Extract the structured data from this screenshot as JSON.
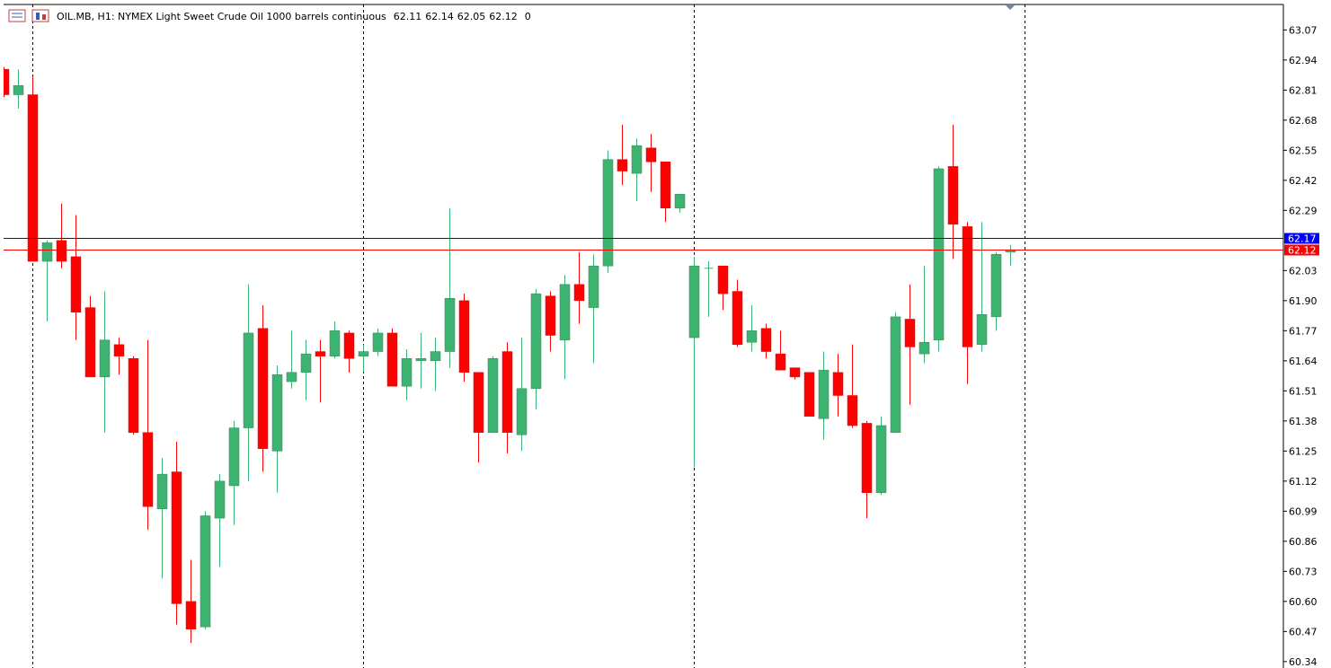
{
  "chart_data": {
    "type": "candlestick",
    "title": "OIL.MB, H1:  NYMEX Light Sweet Crude Oil 1000 barrels continuous",
    "header_number": 0,
    "categories": [
      null,
      null,
      null,
      null,
      null,
      null,
      null,
      null,
      null,
      null,
      null,
      null,
      null,
      null,
      null,
      null,
      null,
      null,
      null,
      null,
      null,
      null,
      null,
      null,
      null,
      null,
      null,
      null,
      null,
      null,
      null,
      null,
      null,
      null,
      null,
      null,
      null,
      null,
      null,
      null,
      null,
      null,
      null,
      null,
      null,
      null,
      null,
      null,
      null,
      null,
      null,
      null,
      null,
      null,
      null,
      null,
      null,
      null,
      null,
      null,
      null,
      null,
      null,
      null,
      null,
      null,
      null,
      null,
      null,
      null,
      null
    ],
    "open": [
      62.9,
      62.79,
      62.79,
      62.07,
      62.16,
      62.09,
      61.87,
      61.57,
      61.71,
      61.65,
      61.33,
      61.0,
      61.16,
      60.6,
      60.49,
      60.96,
      61.1,
      61.35,
      61.78,
      61.25,
      61.55,
      61.59,
      61.68,
      61.66,
      61.76,
      61.66,
      61.68,
      61.76,
      61.53,
      61.64,
      61.64,
      61.68,
      61.9,
      61.59,
      61.33,
      61.68,
      61.32,
      61.52,
      61.92,
      61.73,
      61.97,
      61.87,
      62.05,
      62.51,
      62.45,
      62.56,
      62.5,
      62.3,
      61.74,
      62.04,
      62.05,
      61.94,
      61.72,
      61.78,
      61.67,
      61.61,
      61.59,
      61.39,
      61.59,
      61.49,
      61.37,
      61.07,
      61.33,
      61.82,
      61.67,
      61.73,
      62.48,
      62.22,
      61.71,
      61.83,
      62.11
    ],
    "high": [
      62.91,
      62.9,
      62.87,
      62.16,
      62.32,
      62.27,
      61.92,
      61.94,
      61.74,
      61.66,
      61.73,
      61.22,
      61.29,
      60.78,
      60.99,
      61.15,
      61.38,
      61.97,
      61.88,
      61.62,
      61.77,
      61.73,
      61.73,
      61.81,
      61.77,
      61.71,
      61.78,
      61.78,
      61.69,
      61.76,
      61.74,
      62.3,
      61.93,
      61.59,
      61.66,
      61.72,
      61.74,
      61.95,
      61.94,
      62.01,
      62.11,
      62.1,
      62.55,
      62.66,
      62.6,
      62.62,
      62.5,
      62.36,
      62.09,
      62.07,
      62.05,
      61.99,
      61.88,
      61.8,
      61.77,
      61.61,
      61.59,
      61.68,
      61.67,
      61.71,
      61.38,
      61.4,
      61.85,
      61.97,
      62.05,
      62.48,
      62.66,
      62.24,
      62.24,
      62.11,
      62.14
    ],
    "low": [
      62.78,
      62.73,
      62.07,
      61.81,
      62.04,
      61.73,
      61.57,
      61.33,
      61.58,
      61.32,
      60.91,
      60.7,
      60.5,
      60.42,
      60.48,
      60.75,
      60.93,
      61.12,
      61.16,
      61.07,
      61.52,
      61.47,
      61.46,
      61.65,
      61.59,
      61.59,
      61.66,
      61.53,
      61.47,
      61.52,
      61.51,
      61.61,
      61.55,
      61.2,
      61.33,
      61.24,
      61.25,
      61.43,
      61.68,
      61.56,
      61.8,
      61.63,
      62.02,
      62.4,
      62.33,
      62.37,
      62.24,
      62.28,
      61.18,
      61.83,
      61.86,
      61.7,
      61.68,
      61.65,
      61.6,
      61.56,
      61.4,
      61.3,
      61.4,
      61.35,
      60.96,
      61.06,
      61.33,
      61.45,
      61.63,
      61.68,
      62.08,
      61.54,
      61.68,
      61.77,
      62.05
    ],
    "close": [
      62.79,
      62.83,
      62.07,
      62.15,
      62.07,
      61.85,
      61.57,
      61.73,
      61.66,
      61.33,
      61.01,
      61.15,
      60.59,
      60.48,
      60.97,
      61.12,
      61.35,
      61.76,
      61.26,
      61.58,
      61.59,
      61.67,
      61.66,
      61.77,
      61.65,
      61.68,
      61.76,
      61.53,
      61.65,
      61.65,
      61.68,
      61.91,
      61.59,
      61.33,
      61.65,
      61.33,
      61.52,
      61.93,
      61.75,
      61.97,
      61.9,
      62.05,
      62.51,
      62.46,
      62.57,
      62.5,
      62.3,
      62.36,
      62.05,
      62.04,
      61.93,
      61.71,
      61.77,
      61.68,
      61.6,
      61.57,
      61.4,
      61.6,
      61.49,
      61.36,
      61.07,
      61.36,
      61.83,
      61.7,
      61.72,
      62.47,
      62.23,
      61.7,
      61.84,
      62.1,
      62.12
    ],
    "up_color": "#3cb371",
    "down_color": "#ff0000",
    "ask_line": {
      "value": 62.17,
      "color": "#0000ff"
    },
    "bid_line": {
      "value": 62.12,
      "color": "#ff0000"
    },
    "ylim": [
      60.32,
      63.18
    ],
    "yticks": [
      63.07,
      62.94,
      62.81,
      62.68,
      62.55,
      62.42,
      62.29,
      62.03,
      {
        "value": 61.9,
        "label": "61.90"
      },
      61.77,
      61.64,
      61.51,
      61.38,
      61.25,
      61.12,
      60.99,
      60.86,
      60.73,
      {
        "value": 60.6,
        "label": "60.60"
      },
      60.47,
      60.34
    ]
  }
}
